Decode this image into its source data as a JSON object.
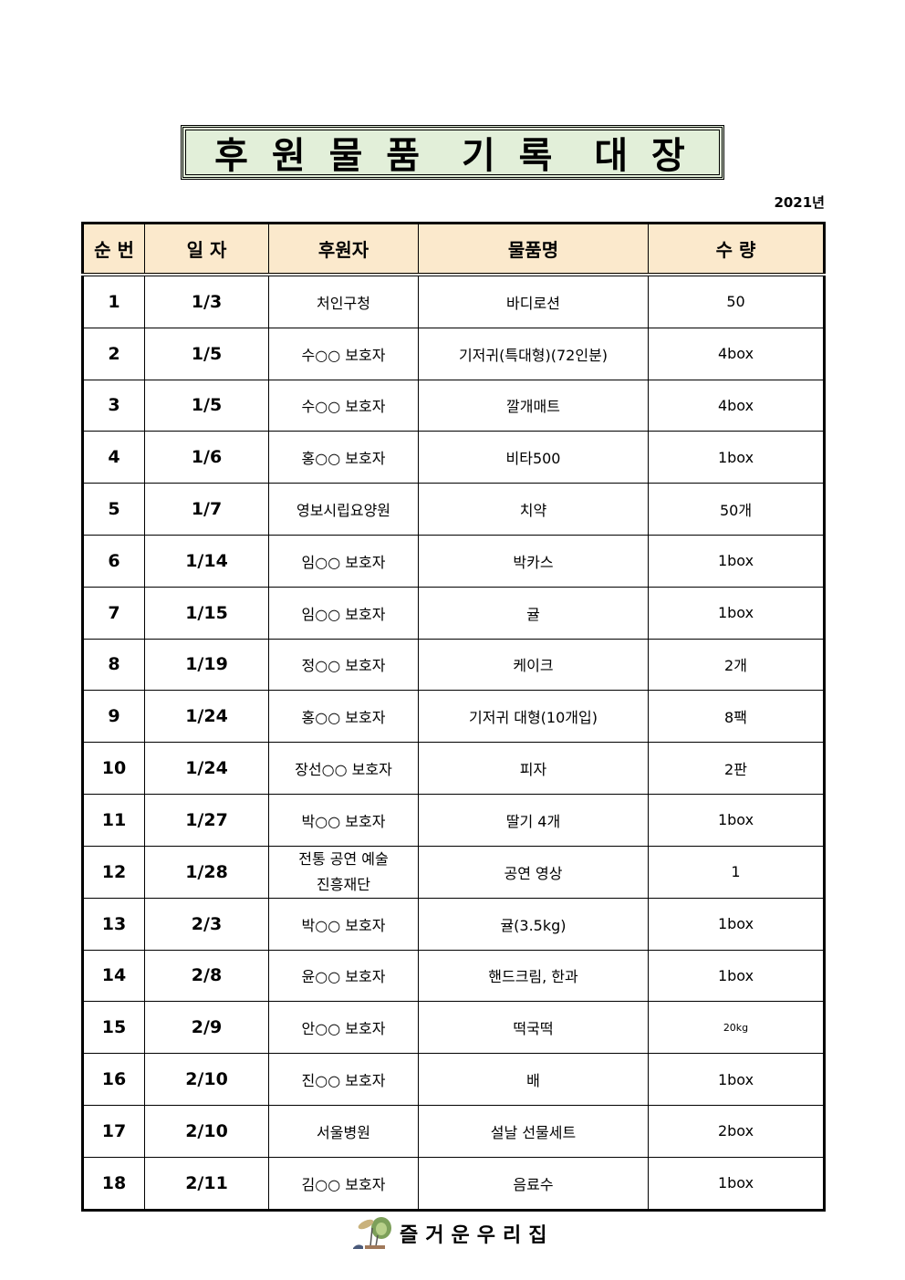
{
  "title": "후 원 물 품  기 록  대 장",
  "year": "2021년",
  "columns": [
    "순 번",
    "일 자",
    "후원자",
    "물품명",
    "수 량"
  ],
  "rows": [
    {
      "no": "1",
      "date": "1/3",
      "donor": "처인구청",
      "item": "바디로션",
      "qty": "50"
    },
    {
      "no": "2",
      "date": "1/5",
      "donor": "수○○ 보호자",
      "item": "기저귀(특대형)(72인분)",
      "qty": "4box"
    },
    {
      "no": "3",
      "date": "1/5",
      "donor": "수○○ 보호자",
      "item": "깔개매트",
      "qty": "4box"
    },
    {
      "no": "4",
      "date": "1/6",
      "donor": "홍○○ 보호자",
      "item": "비타500",
      "qty": "1box"
    },
    {
      "no": "5",
      "date": "1/7",
      "donor": "영보시립요양원",
      "item": "치약",
      "qty": "50개"
    },
    {
      "no": "6",
      "date": "1/14",
      "donor": "임○○ 보호자",
      "item": "박카스",
      "qty": "1box"
    },
    {
      "no": "7",
      "date": "1/15",
      "donor": "임○○ 보호자",
      "item": "귤",
      "qty": "1box"
    },
    {
      "no": "8",
      "date": "1/19",
      "donor": "정○○ 보호자",
      "item": "케이크",
      "qty": "2개"
    },
    {
      "no": "9",
      "date": "1/24",
      "donor": "홍○○ 보호자",
      "item": "기저귀 대형(10개입)",
      "qty": "8팩"
    },
    {
      "no": "10",
      "date": "1/24",
      "donor": "장선○○ 보호자",
      "item": "피자",
      "qty": "2판"
    },
    {
      "no": "11",
      "date": "1/27",
      "donor": "박○○ 보호자",
      "item": "딸기 4개",
      "qty": "1box"
    },
    {
      "no": "12",
      "date": "1/28",
      "donor": "전통 공연 예술\n진흥재단",
      "item": "공연 영상",
      "qty": "1"
    },
    {
      "no": "13",
      "date": "2/3",
      "donor": "박○○ 보호자",
      "item": "귤(3.5kg)",
      "qty": "1box"
    },
    {
      "no": "14",
      "date": "2/8",
      "donor": "윤○○ 보호자",
      "item": "핸드크림, 한과",
      "qty": "1box"
    },
    {
      "no": "15",
      "date": "2/9",
      "donor": "안○○ 보호자",
      "item": "떡국떡",
      "qty": "20kg"
    },
    {
      "no": "16",
      "date": "2/10",
      "donor": "진○○ 보호자",
      "item": "배",
      "qty": "1box"
    },
    {
      "no": "17",
      "date": "2/10",
      "donor": "서울병원",
      "item": "설날 선물세트",
      "qty": "2box"
    },
    {
      "no": "18",
      "date": "2/11",
      "donor": "김○○ 보호자",
      "item": "음료수",
      "qty": "1box"
    }
  ],
  "footer": {
    "name": "즐거운우리집",
    "logo_icon": "plant-logo-icon"
  },
  "colors": {
    "title_bg": "#e2efd9",
    "header_bg": "#fbe9cc"
  }
}
